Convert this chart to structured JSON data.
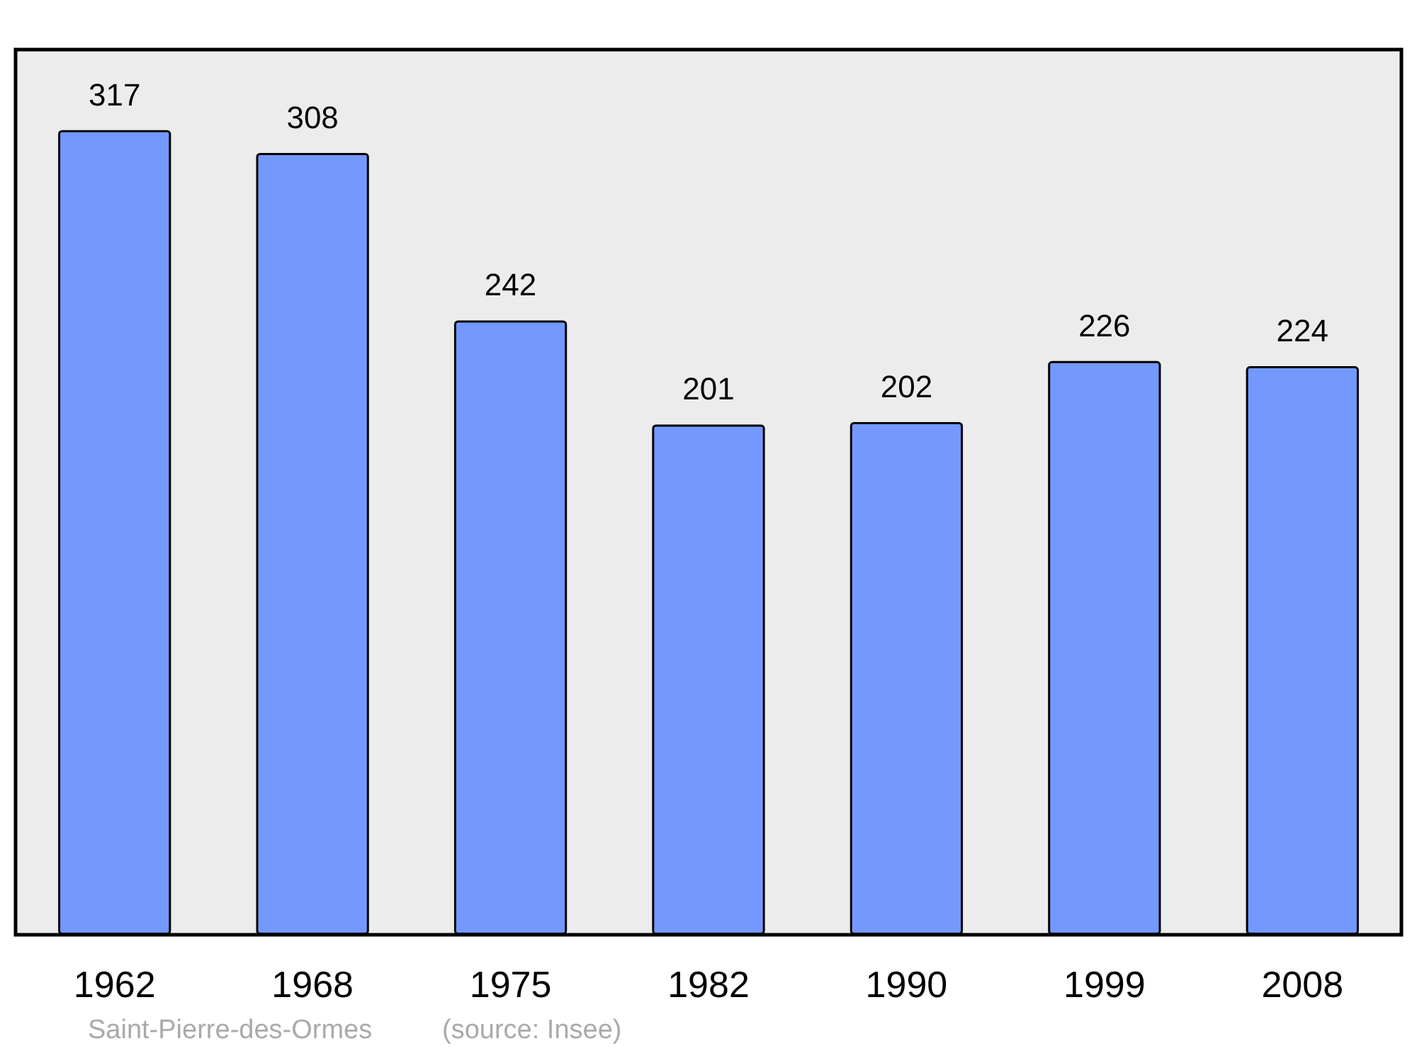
{
  "chart_data": {
    "type": "bar",
    "categories": [
      "1962",
      "1968",
      "1975",
      "1982",
      "1990",
      "1999",
      "2008"
    ],
    "values": [
      317,
      308,
      242,
      201,
      202,
      226,
      224
    ],
    "color": "#7399ff",
    "data_labels": true,
    "tick_labels": "x",
    "annotations": [
      "Saint-Pierre-des-Ormes",
      "(source: Insee)"
    ]
  }
}
